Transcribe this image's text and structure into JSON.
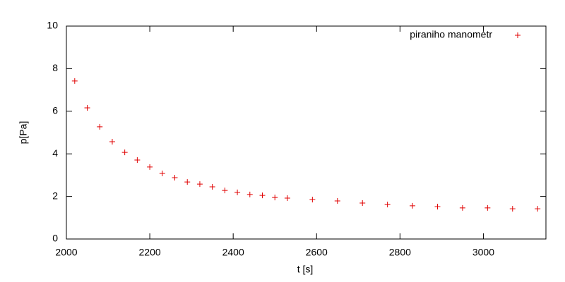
{
  "chart_data": {
    "type": "scatter",
    "xlabel": "t [s]",
    "ylabel": "p[Pa]",
    "xlim": [
      2000,
      3150
    ],
    "xticks": [
      2000,
      2200,
      2400,
      2600,
      2800,
      3000
    ],
    "ylim": [
      0,
      10
    ],
    "yticks": [
      0,
      2,
      4,
      6,
      8,
      10
    ],
    "grid": false,
    "legend": "upper right",
    "series": [
      {
        "name": "piraniho manometr",
        "color": "#e00000",
        "x": [
          2020,
          2050,
          2080,
          2110,
          2140,
          2170,
          2200,
          2230,
          2260,
          2290,
          2320,
          2350,
          2380,
          2410,
          2440,
          2470,
          2500,
          2530,
          2590,
          2650,
          2710,
          2770,
          2830,
          2890,
          2950,
          3010,
          3070,
          3130
        ],
        "values": [
          7.42,
          6.16,
          5.27,
          4.57,
          4.07,
          3.71,
          3.38,
          3.08,
          2.88,
          2.68,
          2.58,
          2.45,
          2.28,
          2.19,
          2.09,
          2.05,
          1.95,
          1.92,
          1.85,
          1.79,
          1.69,
          1.62,
          1.56,
          1.52,
          1.46,
          1.46,
          1.42,
          1.42
        ]
      }
    ]
  }
}
